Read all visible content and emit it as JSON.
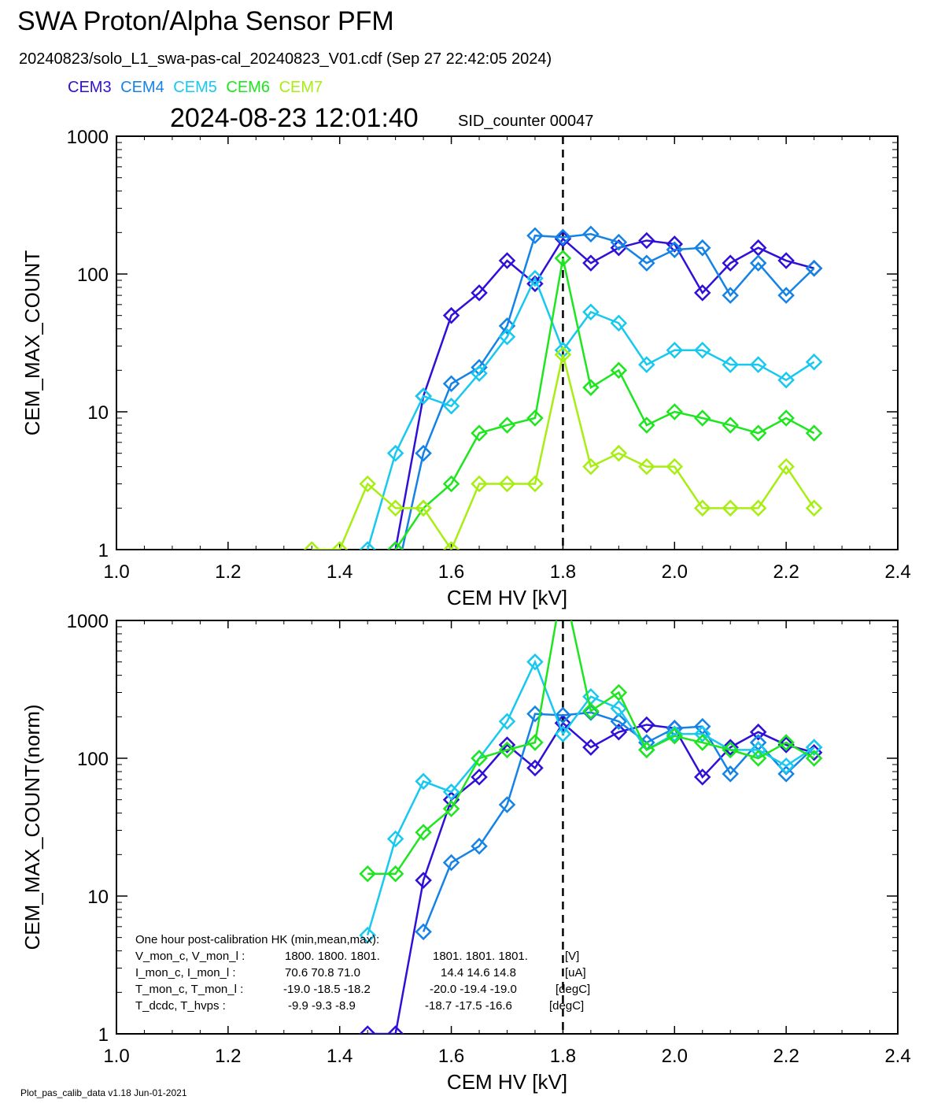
{
  "header": {
    "title": "SWA Proton/Alpha Sensor PFM",
    "subtitle": "20240823/solo_L1_swa-pas-cal_20240823_V01.cdf  (Sep 27 22:42:05 2024)",
    "timestamp": "2024-08-23 12:01:40",
    "sid_counter": "SID_counter 00047"
  },
  "legend": [
    {
      "label": "CEM3",
      "color": "#2f10d8"
    },
    {
      "label": "CEM4",
      "color": "#1583e6"
    },
    {
      "label": "CEM5",
      "color": "#17c9ef"
    },
    {
      "label": "CEM6",
      "color": "#1ee61e"
    },
    {
      "label": "CEM7",
      "color": "#a7ee12"
    }
  ],
  "footer": "Plot_pas_calib_data v1.18 Jun-01-2021",
  "hk_text": {
    "title": "One hour post-calibration HK (min,mean,max):",
    "lines": [
      {
        "name": "V_mon_c, V_mon_l :",
        "a": "1800.  1800.  1801.",
        "b": "1801.  1801.  1801.",
        "unit": "[V]"
      },
      {
        "name": "I_mon_c,  I_mon_l :",
        "a": "70.6   70.8   71.0",
        "b": "14.4   14.6   14.8",
        "unit": "[uA]"
      },
      {
        "name": "T_mon_c, T_mon_l :",
        "a": "-19.0  -18.5  -18.2",
        "b": "-20.0  -19.4  -19.0",
        "unit": "[degC]"
      },
      {
        "name": "T_dcdc,    T_hvps :",
        "a": "-9.9   -9.3   -8.9",
        "b": "-18.7  -17.5  -16.6",
        "unit": "[degC]"
      }
    ]
  },
  "chart_data": [
    {
      "type": "line",
      "xlabel": "CEM HV [kV]",
      "ylabel": "CEM_MAX_COUNT",
      "xlim": [
        1.0,
        2.4
      ],
      "ylim": [
        1,
        1000
      ],
      "yscale": "log",
      "xticks": [
        "1.0",
        "1.2",
        "1.4",
        "1.6",
        "1.8",
        "2.0",
        "2.2",
        "2.4"
      ],
      "yticks": [
        "1",
        "10",
        "100",
        "1000"
      ],
      "vline": 1.8,
      "x": [
        1.35,
        1.4,
        1.45,
        1.5,
        1.55,
        1.6,
        1.65,
        1.7,
        1.75,
        1.8,
        1.85,
        1.9,
        1.95,
        2.0,
        2.05,
        2.1,
        2.15,
        2.2,
        2.25
      ],
      "series": [
        {
          "name": "CEM3",
          "color": "#2f10d8",
          "values": [
            null,
            null,
            0.5,
            1,
            13,
            50,
            73,
            125,
            85,
            180,
            120,
            155,
            175,
            165,
            73,
            120,
            155,
            125,
            110
          ]
        },
        {
          "name": "CEM4",
          "color": "#1583e6",
          "values": [
            null,
            null,
            null,
            0.6,
            5,
            16,
            21,
            42,
            190,
            185,
            195,
            170,
            120,
            150,
            155,
            70,
            120,
            70,
            110
          ]
        },
        {
          "name": "CEM5",
          "color": "#17c9ef",
          "values": [
            null,
            null,
            1,
            5,
            13,
            11,
            19,
            35,
            93,
            28,
            53,
            44,
            22,
            28,
            28,
            22,
            22,
            17,
            23
          ]
        },
        {
          "name": "CEM6",
          "color": "#1ee61e",
          "values": [
            null,
            null,
            null,
            1,
            2,
            3,
            7,
            8,
            9,
            130,
            15,
            20,
            8,
            10,
            9,
            8,
            7,
            9,
            7
          ]
        },
        {
          "name": "CEM7",
          "color": "#a7ee12",
          "values": [
            1,
            1,
            3,
            2,
            2,
            1,
            3,
            3,
            3,
            26,
            4,
            5,
            4,
            4,
            2,
            2,
            2,
            4,
            2
          ]
        }
      ]
    },
    {
      "type": "line",
      "xlabel": "CEM HV [kV]",
      "ylabel": "CEM_MAX_COUNT(norm)",
      "xlim": [
        1.0,
        2.4
      ],
      "ylim": [
        1,
        1000
      ],
      "yscale": "log",
      "xticks": [
        "1.0",
        "1.2",
        "1.4",
        "1.6",
        "1.8",
        "2.0",
        "2.2",
        "2.4"
      ],
      "yticks": [
        "1",
        "10",
        "100",
        "1000"
      ],
      "vline": 1.8,
      "x": [
        1.35,
        1.4,
        1.45,
        1.5,
        1.55,
        1.6,
        1.65,
        1.7,
        1.75,
        1.8,
        1.85,
        1.9,
        1.95,
        2.0,
        2.05,
        2.1,
        2.15,
        2.2,
        2.25
      ],
      "series": [
        {
          "name": "CEM3",
          "color": "#2f10d8",
          "values": [
            null,
            null,
            1,
            1,
            13,
            50,
            73,
            125,
            85,
            180,
            120,
            155,
            175,
            165,
            73,
            120,
            155,
            125,
            110
          ]
        },
        {
          "name": "CEM4",
          "color": "#1583e6",
          "values": [
            null,
            null,
            null,
            null,
            5.5,
            17.5,
            23,
            46,
            210,
            205,
            215,
            185,
            130,
            165,
            170,
            77,
            130,
            77,
            120
          ]
        },
        {
          "name": "CEM5",
          "color": "#17c9ef",
          "values": [
            null,
            null,
            5.2,
            26,
            68,
            57,
            100,
            185,
            500,
            150,
            280,
            230,
            115,
            150,
            150,
            115,
            115,
            88,
            120
          ]
        },
        {
          "name": "CEM6",
          "color": "#1ee61e",
          "values": [
            null,
            null,
            14.5,
            14.5,
            29,
            43,
            100,
            115,
            130,
            1900,
            220,
            300,
            115,
            145,
            130,
            115,
            100,
            130,
            100
          ]
        }
      ]
    }
  ]
}
